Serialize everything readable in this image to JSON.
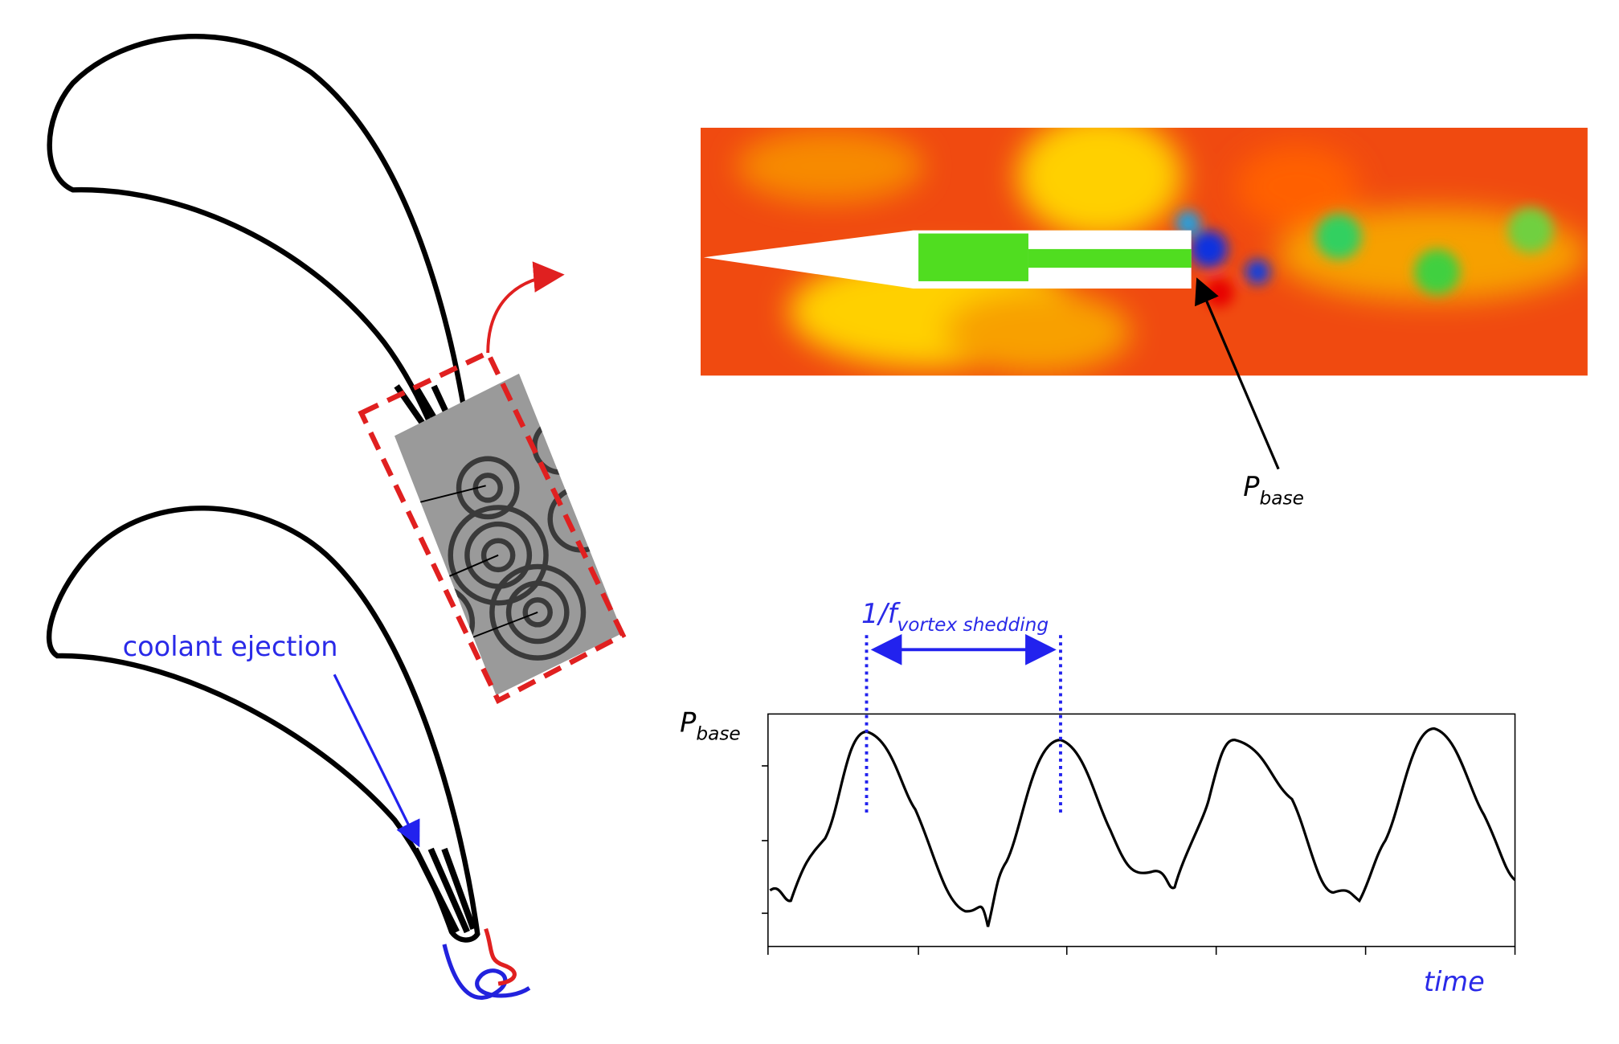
{
  "labels": {
    "coolant": "coolant ejection",
    "pbase_cfd": {
      "main": "P",
      "sub": "base"
    },
    "period": {
      "main": "1/f",
      "sub": "vortex shedding"
    },
    "plot_y": {
      "main": "P",
      "sub": "base"
    },
    "plot_x": "time"
  }
}
